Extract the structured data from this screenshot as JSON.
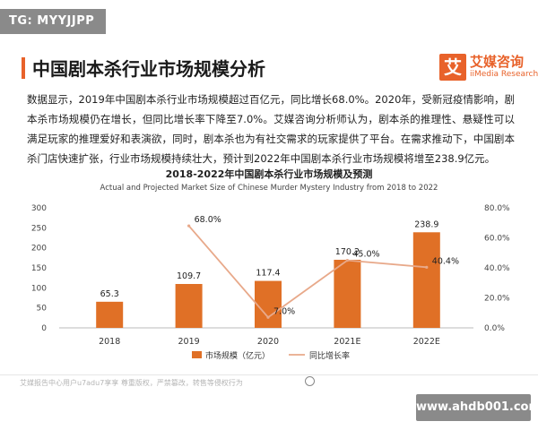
{
  "badge": "TG: MYYJJPP",
  "title": "中国剧本杀行业市场规模分析",
  "logo": {
    "mark": "艾",
    "name": "艾媒咨询",
    "sub": "iiMedia Research"
  },
  "paragraph": "数据显示，2019年中国剧本杀行业市场规模超过百亿元，同比增长68.0%。2020年，受新冠疫情影响，剧本杀市场规模仍在增长，但同比增长率下降至7.0%。艾媒咨询分析师认为，剧本杀的推理性、悬疑性可以满足玩家的推理爱好和表演欲，同时，剧本杀也为有社交需求的玩家提供了平台。在需求推动下，中国剧本杀门店快速扩张，行业市场规模持续壮大，预计到2022年中国剧本杀行业市场规模将增至238.9亿元。",
  "footer": "艾媒报告中心用户u7adu7享享 尊重版权，严禁篡改，转售等侵权行为",
  "watermark": "www.ahdb001.com",
  "colors": {
    "accent": "#e8622a",
    "bar": "#e07026",
    "line": "#e8a98a"
  },
  "chart_data": {
    "type": "bar",
    "title": "2018-2022年中国剧本杀行业市场规模及预测",
    "subtitle": "Actual and Projected Market Size  of Chinese Murder Mystery Industry from 2018 to 2022",
    "categories": [
      "2018",
      "2019",
      "2020",
      "2021E",
      "2022E"
    ],
    "series": [
      {
        "name": "市场规模（亿元）",
        "type": "bar",
        "axis": "left",
        "values": [
          65.3,
          109.7,
          117.4,
          170.2,
          238.9
        ]
      },
      {
        "name": "同比增长率",
        "type": "line",
        "axis": "right",
        "values": [
          null,
          68.0,
          7.0,
          45.0,
          40.4
        ]
      }
    ],
    "bar_labels": [
      "65.3",
      "109.7",
      "117.4",
      "170.2",
      "238.9"
    ],
    "line_labels": [
      "",
      "68.0%",
      "7.0%",
      "45.0%",
      "40.4%"
    ],
    "y_left": {
      "min": 0,
      "max": 300,
      "ticks": [
        "0",
        "50",
        "100",
        "150",
        "200",
        "250",
        "300"
      ]
    },
    "y_right": {
      "min": 0,
      "max": 80,
      "ticks": [
        "0.0%",
        "20.0%",
        "40.0%",
        "60.0%",
        "80.0%"
      ]
    },
    "legend": "bottom",
    "grid": false
  }
}
